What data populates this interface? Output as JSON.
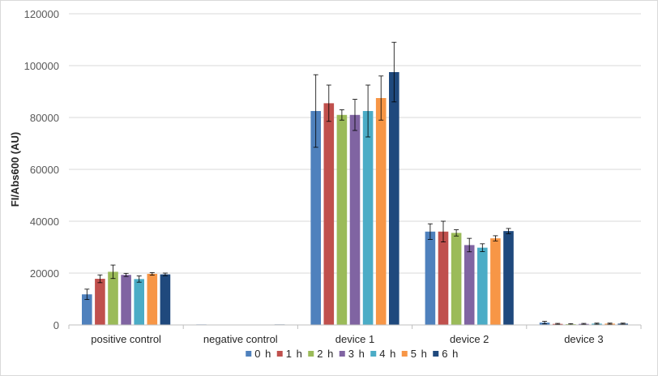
{
  "chart_data": {
    "type": "bar",
    "title": "",
    "xlabel": "",
    "ylabel": "FI/Abs600 (AU)",
    "ylim": [
      0,
      120000
    ],
    "yticks": [
      "0",
      "20000",
      "40000",
      "60000",
      "80000",
      "100000",
      "120000"
    ],
    "grid": true,
    "legend_position": "bottom",
    "categories": [
      "positive control",
      "negative control",
      "device 1",
      "device 2",
      "device 3"
    ],
    "series": [
      {
        "name": "0 h",
        "color": "#4f81bd",
        "values": [
          11800,
          200,
          82500,
          36000,
          900
        ],
        "errors": [
          2000,
          0,
          14000,
          3000,
          500
        ]
      },
      {
        "name": "1 h",
        "color": "#c0504d",
        "values": [
          17800,
          0,
          85500,
          36000,
          400
        ],
        "errors": [
          1500,
          0,
          7000,
          4000,
          200
        ]
      },
      {
        "name": "2 h",
        "color": "#9bbb59",
        "values": [
          20500,
          0,
          81000,
          35500,
          300
        ],
        "errors": [
          2600,
          0,
          2000,
          1200,
          200
        ]
      },
      {
        "name": "3 h",
        "color": "#8064a2",
        "values": [
          19300,
          0,
          81000,
          30800,
          400
        ],
        "errors": [
          600,
          0,
          6000,
          2600,
          200
        ]
      },
      {
        "name": "4 h",
        "color": "#4bacc6",
        "values": [
          17700,
          0,
          82500,
          29800,
          500
        ],
        "errors": [
          1200,
          0,
          10000,
          1500,
          200
        ]
      },
      {
        "name": "5 h",
        "color": "#f79646",
        "values": [
          19700,
          0,
          87500,
          33400,
          500
        ],
        "errors": [
          500,
          0,
          8500,
          1000,
          200
        ]
      },
      {
        "name": "6 h",
        "color": "#1f497d",
        "values": [
          19500,
          200,
          97500,
          36200,
          500
        ],
        "errors": [
          500,
          0,
          11500,
          1000,
          200
        ]
      }
    ]
  }
}
